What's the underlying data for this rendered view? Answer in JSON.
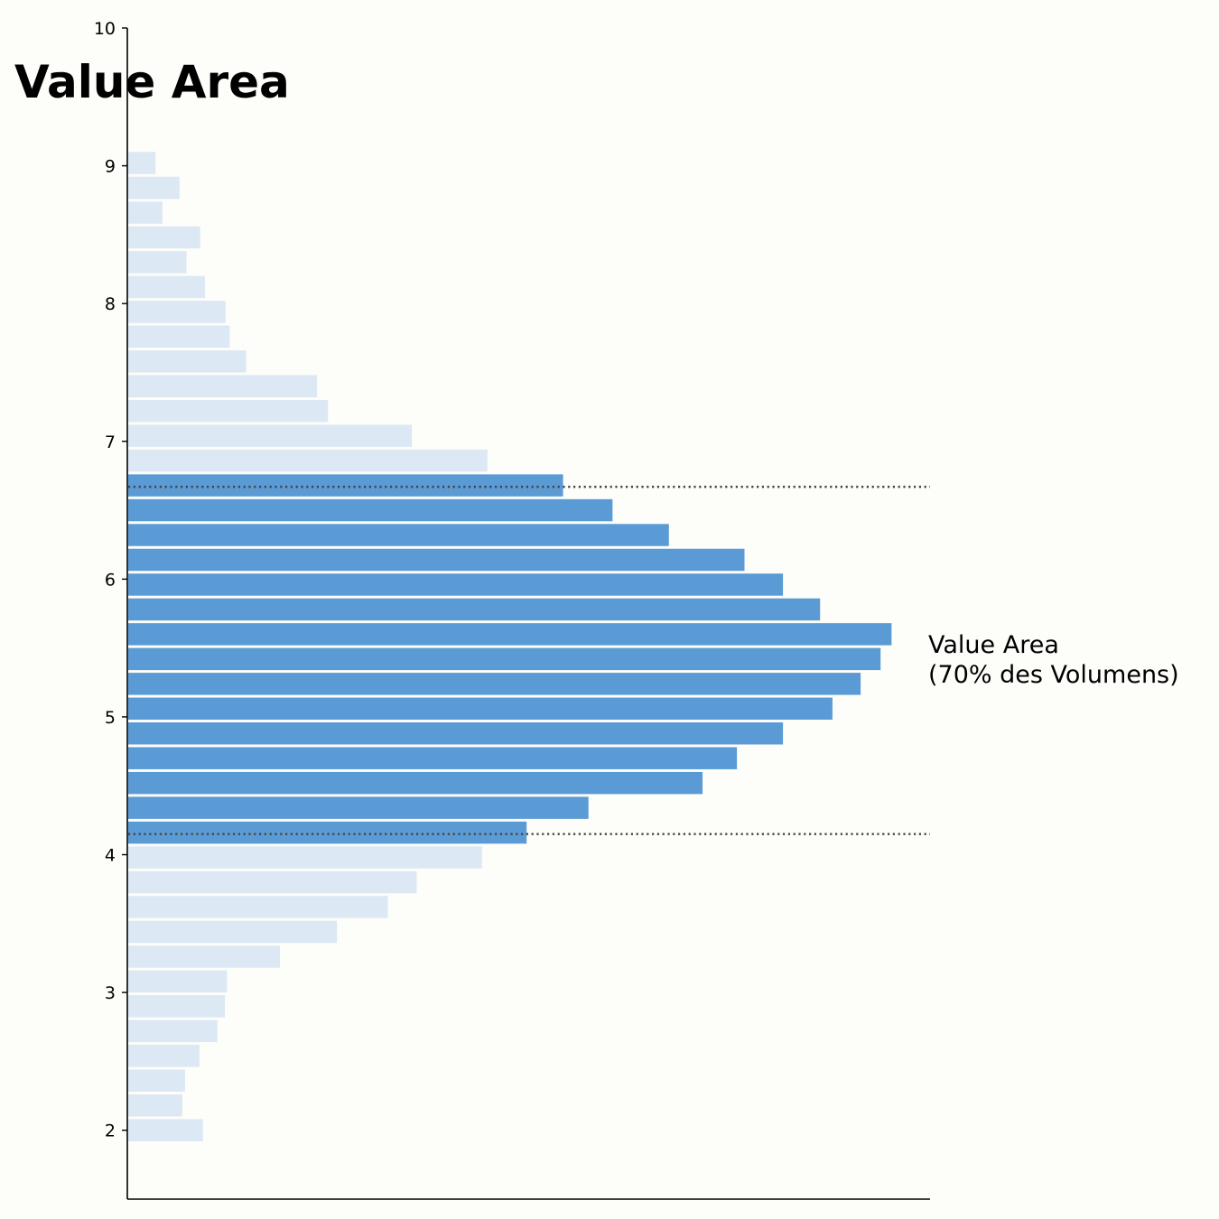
{
  "chart_data": {
    "type": "bar",
    "orientation": "horizontal",
    "title": "Value Area",
    "xlabel": "",
    "ylabel": "",
    "ylim": [
      1.5,
      10
    ],
    "y_ticks": [
      2,
      3,
      4,
      5,
      6,
      7,
      8,
      9,
      10
    ],
    "bin_height": 0.18,
    "x_axis_visible": false,
    "grid": false,
    "colors": {
      "background": "#fdfdf9",
      "value_area_bar": "#5b9bd5",
      "other_bar": "#dce8f4",
      "boundary_line": "#444444",
      "axis": "#000000"
    },
    "bins": [
      {
        "price": 2.0,
        "volume": 11.0,
        "in_value_area": false
      },
      {
        "price": 2.18,
        "volume": 8.0,
        "in_value_area": false
      },
      {
        "price": 2.36,
        "volume": 8.4,
        "in_value_area": false
      },
      {
        "price": 2.54,
        "volume": 10.5,
        "in_value_area": false
      },
      {
        "price": 2.72,
        "volume": 13.1,
        "in_value_area": false
      },
      {
        "price": 2.9,
        "volume": 14.2,
        "in_value_area": false
      },
      {
        "price": 3.08,
        "volume": 14.5,
        "in_value_area": false
      },
      {
        "price": 3.26,
        "volume": 22.2,
        "in_value_area": false
      },
      {
        "price": 3.44,
        "volume": 30.5,
        "in_value_area": false
      },
      {
        "price": 3.62,
        "volume": 37.9,
        "in_value_area": false
      },
      {
        "price": 3.8,
        "volume": 42.1,
        "in_value_area": false
      },
      {
        "price": 3.98,
        "volume": 51.6,
        "in_value_area": false
      },
      {
        "price": 4.16,
        "volume": 58.1,
        "in_value_area": true
      },
      {
        "price": 4.34,
        "volume": 67.1,
        "in_value_area": true
      },
      {
        "price": 4.52,
        "volume": 83.7,
        "in_value_area": true
      },
      {
        "price": 4.7,
        "volume": 88.7,
        "in_value_area": true
      },
      {
        "price": 4.88,
        "volume": 95.4,
        "in_value_area": true
      },
      {
        "price": 5.06,
        "volume": 102.6,
        "in_value_area": true
      },
      {
        "price": 5.24,
        "volume": 106.7,
        "in_value_area": true
      },
      {
        "price": 5.42,
        "volume": 109.6,
        "in_value_area": true
      },
      {
        "price": 5.6,
        "volume": 111.2,
        "in_value_area": true
      },
      {
        "price": 5.78,
        "volume": 100.8,
        "in_value_area": true
      },
      {
        "price": 5.96,
        "volume": 95.4,
        "in_value_area": true
      },
      {
        "price": 6.14,
        "volume": 89.8,
        "in_value_area": true
      },
      {
        "price": 6.32,
        "volume": 78.8,
        "in_value_area": true
      },
      {
        "price": 6.5,
        "volume": 70.6,
        "in_value_area": true
      },
      {
        "price": 6.68,
        "volume": 63.4,
        "in_value_area": true
      },
      {
        "price": 6.86,
        "volume": 52.4,
        "in_value_area": false
      },
      {
        "price": 7.04,
        "volume": 41.4,
        "in_value_area": false
      },
      {
        "price": 7.22,
        "volume": 29.2,
        "in_value_area": false
      },
      {
        "price": 7.4,
        "volume": 27.6,
        "in_value_area": false
      },
      {
        "price": 7.58,
        "volume": 17.3,
        "in_value_area": false
      },
      {
        "price": 7.76,
        "volume": 14.9,
        "in_value_area": false
      },
      {
        "price": 7.94,
        "volume": 14.3,
        "in_value_area": false
      },
      {
        "price": 8.12,
        "volume": 11.3,
        "in_value_area": false
      },
      {
        "price": 8.3,
        "volume": 8.6,
        "in_value_area": false
      },
      {
        "price": 8.48,
        "volume": 10.6,
        "in_value_area": false
      },
      {
        "price": 8.66,
        "volume": 5.1,
        "in_value_area": false
      },
      {
        "price": 8.84,
        "volume": 7.6,
        "in_value_area": false
      },
      {
        "price": 9.02,
        "volume": 4.1,
        "in_value_area": false
      }
    ],
    "xlim": [
      0,
      116.8
    ],
    "value_area_low": 4.15,
    "value_area_high": 6.67,
    "annotation": {
      "lines": [
        "Value Area",
        "(70% des Volumens)"
      ]
    }
  }
}
